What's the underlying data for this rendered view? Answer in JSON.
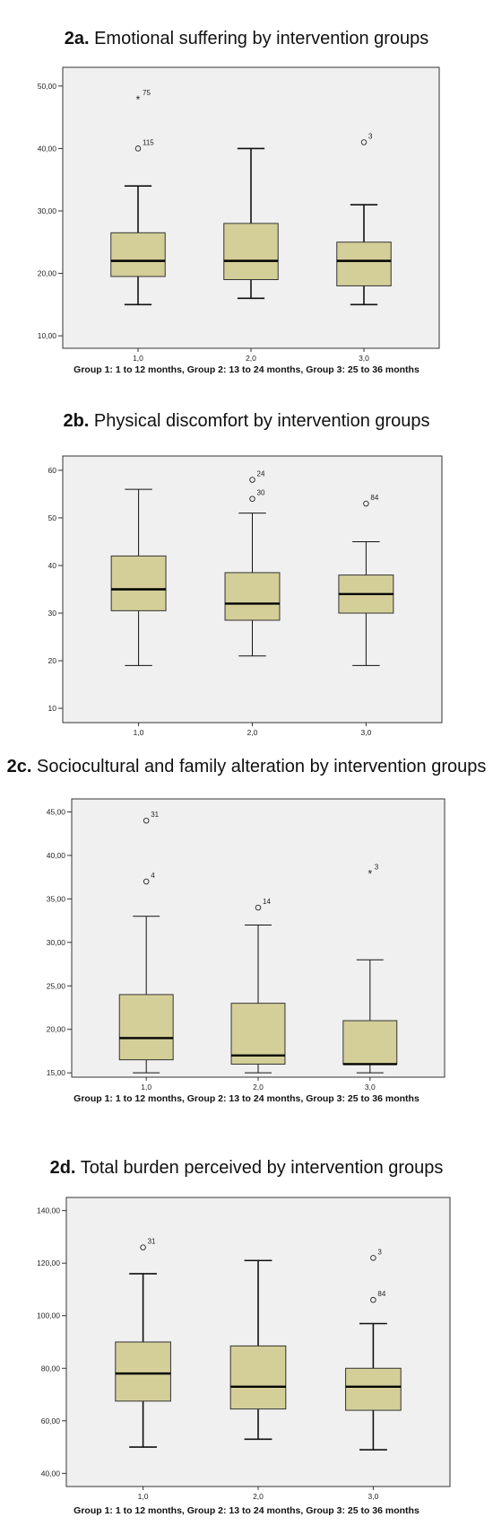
{
  "chart_data": [
    {
      "type": "boxplot",
      "title_prefix": "2a.",
      "title": "Emotional suffering by intervention groups",
      "caption": "Group 1: 1 to 12 months, Group 2: 13 to 24 months, Group 3: 25 to 36 months",
      "categories": [
        "1,0",
        "2,0",
        "3,0"
      ],
      "ylim": [
        8,
        53
      ],
      "yticks": [
        10,
        20,
        30,
        40,
        50
      ],
      "ytick_labels": [
        "10,00",
        "20,00",
        "30,00",
        "40,00",
        "50,00"
      ],
      "boxes": [
        {
          "min": 15,
          "q1": 19.5,
          "median": 22,
          "q3": 26.5,
          "max": 34,
          "outliers": [
            {
              "value": 48,
              "marker": "star",
              "label": "75"
            },
            {
              "value": 40,
              "marker": "circle",
              "label": "115"
            }
          ]
        },
        {
          "min": 16,
          "q1": 19,
          "median": 22,
          "q3": 28,
          "max": 40,
          "outliers": []
        },
        {
          "min": 15,
          "q1": 18,
          "median": 22,
          "q3": 25,
          "max": 31,
          "outliers": [
            {
              "value": 41,
              "marker": "circle",
              "label": "3"
            }
          ]
        }
      ],
      "colors": {
        "box": "#d4cf99",
        "plot_bg": "#f0f0f0"
      }
    },
    {
      "type": "boxplot",
      "title_prefix": "2b.",
      "title": "Physical discomfort by intervention groups",
      "caption": "",
      "categories": [
        "1,0",
        "2,0",
        "3,0"
      ],
      "ylim": [
        7,
        63
      ],
      "yticks": [
        10,
        20,
        30,
        40,
        50,
        60
      ],
      "ytick_labels": [
        "10",
        "20",
        "30",
        "40",
        "50",
        "60"
      ],
      "boxes": [
        {
          "min": 19,
          "q1": 30.5,
          "median": 35,
          "q3": 42,
          "max": 56,
          "outliers": []
        },
        {
          "min": 21,
          "q1": 28.5,
          "median": 32,
          "q3": 38.5,
          "max": 51,
          "outliers": [
            {
              "value": 58,
              "marker": "circle",
              "label": "24"
            },
            {
              "value": 54,
              "marker": "circle",
              "label": "30"
            }
          ]
        },
        {
          "min": 19,
          "q1": 30,
          "median": 34,
          "q3": 38,
          "max": 45,
          "outliers": [
            {
              "value": 53,
              "marker": "circle",
              "label": "84"
            }
          ]
        }
      ],
      "colors": {
        "box": "#d4cf99",
        "plot_bg": "#f0f0f0"
      }
    },
    {
      "type": "boxplot",
      "title_prefix": "2c.",
      "title": "Sociocultural and family alteration by intervention groups",
      "caption": "Group 1: 1 to 12 months, Group 2: 13 to 24 months, Group 3: 25 to 36 months",
      "categories": [
        "1,0",
        "2,0",
        "3,0"
      ],
      "ylim": [
        14.5,
        46.5
      ],
      "yticks": [
        15,
        20,
        25,
        30,
        35,
        40,
        45
      ],
      "ytick_labels": [
        "15,00",
        "20,00",
        "25,00",
        "30,00",
        "35,00",
        "40,00",
        "45,00"
      ],
      "boxes": [
        {
          "min": 15,
          "q1": 16.5,
          "median": 19,
          "q3": 24,
          "max": 33,
          "outliers": [
            {
              "value": 44,
              "marker": "circle",
              "label": "31"
            },
            {
              "value": 37,
              "marker": "circle",
              "label": "4"
            }
          ]
        },
        {
          "min": 15,
          "q1": 16,
          "median": 17,
          "q3": 23,
          "max": 32,
          "outliers": [
            {
              "value": 34,
              "marker": "circle",
              "label": "14"
            }
          ]
        },
        {
          "min": 15,
          "q1": 16,
          "median": 16,
          "q3": 21,
          "max": 28,
          "outliers": [
            {
              "value": 38,
              "marker": "star",
              "label": "3"
            }
          ]
        }
      ],
      "colors": {
        "box": "#d4cf99",
        "plot_bg": "#f0f0f0"
      }
    },
    {
      "type": "boxplot",
      "title_prefix": "2d.",
      "title": "Total burden perceived by intervention groups",
      "caption": "Group 1: 1 to 12 months, Group 2: 13 to 24 months, Group 3: 25 to 36 months",
      "categories": [
        "1,0",
        "2,0",
        "3,0"
      ],
      "ylim": [
        35,
        145
      ],
      "yticks": [
        40,
        60,
        80,
        100,
        120,
        140
      ],
      "ytick_labels": [
        "40,00",
        "60,00",
        "80,00",
        "100,00",
        "120,00",
        "140,00"
      ],
      "boxes": [
        {
          "min": 50,
          "q1": 67.5,
          "median": 78,
          "q3": 90,
          "max": 116,
          "outliers": [
            {
              "value": 126,
              "marker": "circle",
              "label": "31"
            }
          ]
        },
        {
          "min": 53,
          "q1": 64.5,
          "median": 73,
          "q3": 88.5,
          "max": 121,
          "outliers": []
        },
        {
          "min": 49,
          "q1": 64,
          "median": 73,
          "q3": 80,
          "max": 97,
          "outliers": [
            {
              "value": 122,
              "marker": "circle",
              "label": "3"
            },
            {
              "value": 106,
              "marker": "circle",
              "label": "84"
            }
          ]
        }
      ],
      "colors": {
        "box": "#d4cf99",
        "plot_bg": "#f0f0f0"
      }
    }
  ]
}
